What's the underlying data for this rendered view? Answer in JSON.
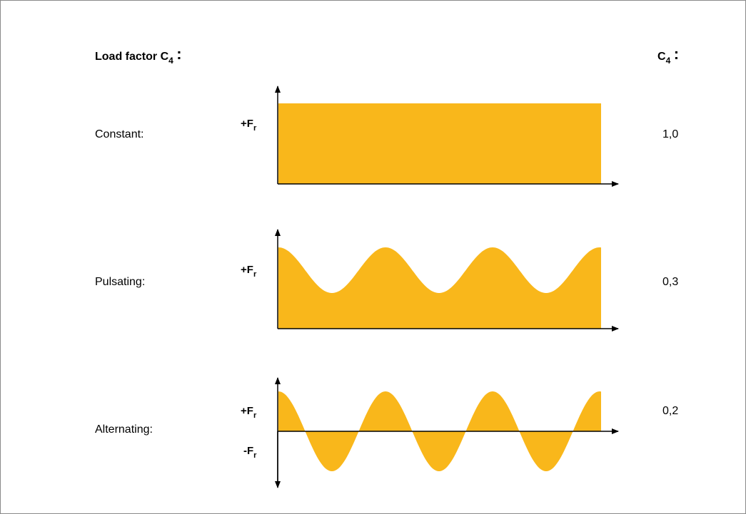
{
  "header": {
    "title_prefix": "Load factor C",
    "title_sub": "4",
    "title_colon": ":",
    "value_prefix": "C",
    "value_sub": "4",
    "value_colon": ":"
  },
  "rows": [
    {
      "label": "Constant:",
      "value": "1,0",
      "pos_label": "+F",
      "pos_sub": "r"
    },
    {
      "label": "Pulsating:",
      "value": "0,3",
      "pos_label": "+F",
      "pos_sub": "r"
    },
    {
      "label": "Alternating:",
      "value": "0,2",
      "pos_label": "+F",
      "pos_sub": "r",
      "neg_label": "-F",
      "neg_sub": "r"
    }
  ],
  "colors": {
    "fill": "#F9B71B",
    "axis": "#000000",
    "frame": "#8a8a8a"
  }
}
